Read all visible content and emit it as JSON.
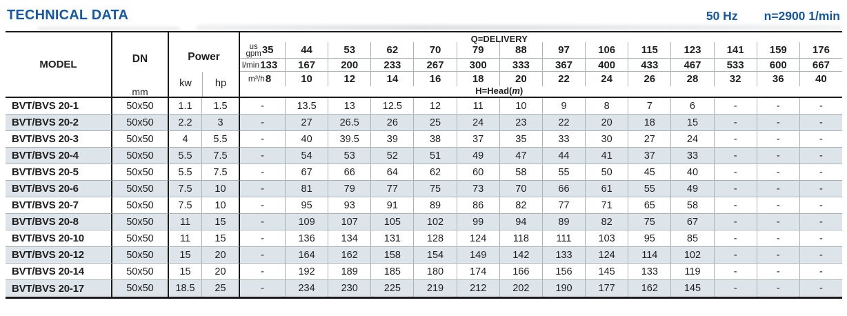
{
  "page": {
    "title": "TECHNICAL DATA",
    "frequency": "50 Hz",
    "speed": "n=2900 1/min"
  },
  "table": {
    "columns": {
      "model": "MODEL",
      "dn": "DN",
      "power": "Power",
      "mm": "mm",
      "kw": "kw",
      "hp": "hp"
    },
    "delivery": {
      "label": "Q=DELIVERY",
      "head_prefix": "H=Head(",
      "head_unit": "m",
      "head_suffix": ")",
      "unit_rows": [
        {
          "unit_lines": [
            "us",
            "gpm"
          ],
          "first": "35",
          "values": [
            "44",
            "53",
            "62",
            "70",
            "79",
            "88",
            "97",
            "106",
            "115",
            "123",
            "141",
            "159",
            "176"
          ]
        },
        {
          "unit_lines": [
            "l/min"
          ],
          "first": "133",
          "values": [
            "167",
            "200",
            "233",
            "267",
            "300",
            "333",
            "367",
            "400",
            "433",
            "467",
            "533",
            "600",
            "667"
          ]
        },
        {
          "unit_lines": [
            "m³/h"
          ],
          "first": "8",
          "values": [
            "10",
            "12",
            "14",
            "16",
            "18",
            "20",
            "22",
            "24",
            "26",
            "28",
            "32",
            "36",
            "40"
          ]
        }
      ]
    },
    "rows": [
      {
        "model": "BVT/BVS 20-1",
        "dn": "50x50",
        "kw": "1.1",
        "hp": "1.5",
        "heads": [
          "-",
          "13.5",
          "13",
          "12.5",
          "12",
          "11",
          "10",
          "9",
          "8",
          "7",
          "6",
          "-",
          "-",
          "-"
        ]
      },
      {
        "model": "BVT/BVS 20-2",
        "dn": "50x50",
        "kw": "2.2",
        "hp": "3",
        "heads": [
          "-",
          "27",
          "26.5",
          "26",
          "25",
          "24",
          "23",
          "22",
          "20",
          "18",
          "15",
          "-",
          "-",
          "-"
        ]
      },
      {
        "model": "BVT/BVS 20-3",
        "dn": "50x50",
        "kw": "4",
        "hp": "5.5",
        "heads": [
          "-",
          "40",
          "39.5",
          "39",
          "38",
          "37",
          "35",
          "33",
          "30",
          "27",
          "24",
          "-",
          "-",
          "-"
        ]
      },
      {
        "model": "BVT/BVS 20-4",
        "dn": "50x50",
        "kw": "5.5",
        "hp": "7.5",
        "heads": [
          "-",
          "54",
          "53",
          "52",
          "51",
          "49",
          "47",
          "44",
          "41",
          "37",
          "33",
          "-",
          "-",
          "-"
        ]
      },
      {
        "model": "BVT/BVS 20-5",
        "dn": "50x50",
        "kw": "5.5",
        "hp": "7.5",
        "heads": [
          "-",
          "67",
          "66",
          "64",
          "62",
          "60",
          "58",
          "55",
          "50",
          "45",
          "40",
          "-",
          "-",
          "-"
        ]
      },
      {
        "model": "BVT/BVS 20-6",
        "dn": "50x50",
        "kw": "7.5",
        "hp": "10",
        "heads": [
          "-",
          "81",
          "79",
          "77",
          "75",
          "73",
          "70",
          "66",
          "61",
          "55",
          "49",
          "-",
          "-",
          "-"
        ]
      },
      {
        "model": "BVT/BVS 20-7",
        "dn": "50x50",
        "kw": "7.5",
        "hp": "10",
        "heads": [
          "-",
          "95",
          "93",
          "91",
          "89",
          "86",
          "82",
          "77",
          "71",
          "65",
          "58",
          "-",
          "-",
          "-"
        ]
      },
      {
        "model": "BVT/BVS 20-8",
        "dn": "50x50",
        "kw": "11",
        "hp": "15",
        "heads": [
          "-",
          "109",
          "107",
          "105",
          "102",
          "99",
          "94",
          "89",
          "82",
          "75",
          "67",
          "-",
          "-",
          "-"
        ]
      },
      {
        "model": "BVT/BVS 20-10",
        "dn": "50x50",
        "kw": "11",
        "hp": "15",
        "heads": [
          "-",
          "136",
          "134",
          "131",
          "128",
          "124",
          "118",
          "111",
          "103",
          "95",
          "85",
          "-",
          "-",
          "-"
        ]
      },
      {
        "model": "BVT/BVS 20-12",
        "dn": "50x50",
        "kw": "15",
        "hp": "20",
        "heads": [
          "-",
          "164",
          "162",
          "158",
          "154",
          "149",
          "142",
          "133",
          "124",
          "114",
          "102",
          "-",
          "-",
          "-"
        ]
      },
      {
        "model": "BVT/BVS 20-14",
        "dn": "50x50",
        "kw": "15",
        "hp": "20",
        "heads": [
          "-",
          "192",
          "189",
          "185",
          "180",
          "174",
          "166",
          "156",
          "145",
          "133",
          "119",
          "-",
          "-",
          "-"
        ]
      },
      {
        "model": "BVT/BVS 20-17",
        "dn": "50x50",
        "kw": "18.5",
        "hp": "25",
        "heads": [
          "-",
          "234",
          "230",
          "225",
          "219",
          "212",
          "202",
          "190",
          "177",
          "162",
          "145",
          "-",
          "-",
          "-"
        ]
      }
    ]
  }
}
